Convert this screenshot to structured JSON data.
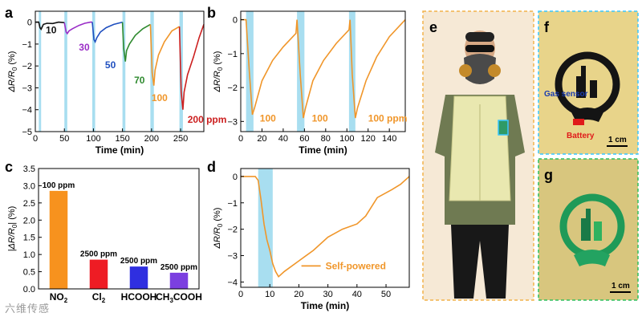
{
  "watermark": "六维传感",
  "colors": {
    "shade": "#a8def0",
    "orange": "#f0962a",
    "black": "#111111",
    "purple": "#9a2dc7",
    "blue": "#1f4fbf",
    "green": "#2f8a2f",
    "red": "#cc1f1f",
    "bar_no2": "#f7921e",
    "bar_cl2": "#ee1c24",
    "bar_hcooh": "#2f2fe0",
    "bar_ch3cooh": "#7b3fe0"
  },
  "panel_labels": {
    "a": "a",
    "b": "b",
    "c": "c",
    "d": "d",
    "e": "e",
    "f": "f",
    "g": "g"
  },
  "photos": {
    "f_gas_sensor": "Gas sensor",
    "f_battery": "Battery",
    "f_scale": "1 cm",
    "g_scale": "1 cm"
  },
  "chart_data": [
    {
      "id": "a",
      "type": "line",
      "xlabel": "Time (min)",
      "ylabel": "ΔR/R0 (%)",
      "xlim": [
        0,
        290
      ],
      "ylim": [
        -5,
        0.5
      ],
      "xticks": [
        0,
        50,
        100,
        150,
        200,
        250
      ],
      "yticks": [
        0,
        -1,
        -2,
        -3,
        -4,
        -5
      ],
      "shaded_ranges": [
        [
          6,
          10
        ],
        [
          50,
          55
        ],
        [
          98,
          103
        ],
        [
          150,
          155
        ],
        [
          198,
          204
        ],
        [
          248,
          254
        ]
      ],
      "annotations": [
        {
          "text": "10",
          "x": 18,
          "y": -0.5,
          "color": "black"
        },
        {
          "text": "30",
          "x": 75,
          "y": -1.3,
          "color": "purple"
        },
        {
          "text": "50",
          "x": 120,
          "y": -2.1,
          "color": "blue"
        },
        {
          "text": "70",
          "x": 170,
          "y": -2.8,
          "color": "green"
        },
        {
          "text": "100",
          "x": 200,
          "y": -3.6,
          "color": "orange"
        },
        {
          "text": "200 ppm",
          "x": 262,
          "y": -4.6,
          "color": "red"
        }
      ],
      "series": [
        {
          "name": "10 ppm",
          "color": "black",
          "points": [
            [
              0,
              0
            ],
            [
              6,
              0
            ],
            [
              8,
              -0.25
            ],
            [
              10,
              -0.32
            ],
            [
              14,
              -0.1
            ],
            [
              20,
              -0.05
            ],
            [
              30,
              -0.06
            ],
            [
              40,
              0
            ],
            [
              50,
              -0.02
            ]
          ]
        },
        {
          "name": "30 ppm",
          "color": "purple",
          "points": [
            [
              50,
              -0.02
            ],
            [
              53,
              -0.45
            ],
            [
              55,
              -0.52
            ],
            [
              58,
              -0.4
            ],
            [
              64,
              -0.3
            ],
            [
              75,
              -0.15
            ],
            [
              85,
              -0.05
            ],
            [
              95,
              0
            ],
            [
              98,
              0
            ]
          ]
        },
        {
          "name": "50 ppm",
          "color": "blue",
          "points": [
            [
              98,
              0
            ],
            [
              101,
              -0.8
            ],
            [
              103,
              -0.9
            ],
            [
              106,
              -0.7
            ],
            [
              112,
              -0.45
            ],
            [
              122,
              -0.25
            ],
            [
              135,
              -0.1
            ],
            [
              150,
              0
            ]
          ]
        },
        {
          "name": "70 ppm",
          "color": "green",
          "points": [
            [
              150,
              0
            ],
            [
              152,
              -1.2
            ],
            [
              155,
              -1.8
            ],
            [
              157,
              -1.3
            ],
            [
              162,
              -1.0
            ],
            [
              172,
              -0.6
            ],
            [
              185,
              -0.3
            ],
            [
              198,
              -0.1
            ]
          ]
        },
        {
          "name": "100 ppm",
          "color": "orange",
          "points": [
            [
              198,
              -0.1
            ],
            [
              201,
              -2.3
            ],
            [
              204,
              -2.9
            ],
            [
              206,
              -2.2
            ],
            [
              212,
              -1.5
            ],
            [
              222,
              -0.9
            ],
            [
              235,
              -0.4
            ],
            [
              248,
              -0.2
            ]
          ]
        },
        {
          "name": "200 ppm",
          "color": "red",
          "points": [
            [
              248,
              -0.2
            ],
            [
              251,
              -3.2
            ],
            [
              254,
              -4.0
            ],
            [
              256,
              -3.2
            ],
            [
              262,
              -2.4
            ],
            [
              272,
              -1.6
            ],
            [
              282,
              -0.7
            ],
            [
              290,
              -0.1
            ]
          ]
        }
      ]
    },
    {
      "id": "b",
      "type": "line",
      "xlabel": "Time (min)",
      "ylabel": "ΔR/R0 (%)",
      "xlim": [
        0,
        155
      ],
      "ylim": [
        -3.3,
        0.25
      ],
      "xticks": [
        0,
        20,
        40,
        60,
        80,
        100,
        120,
        140
      ],
      "yticks": [
        0,
        -1,
        -2,
        -3
      ],
      "shaded_ranges": [
        [
          5,
          12
        ],
        [
          53,
          60
        ],
        [
          102,
          108
        ]
      ],
      "annotations": [
        {
          "text": "100",
          "x": 18,
          "y": -3.0,
          "color": "orange"
        },
        {
          "text": "100",
          "x": 67,
          "y": -3.0,
          "color": "orange"
        },
        {
          "text": "100 ppm",
          "x": 120,
          "y": -3.0,
          "color": "orange"
        }
      ],
      "series": [
        {
          "name": "100 ppm cycles",
          "color": "orange",
          "points": [
            [
              0,
              0
            ],
            [
              5,
              0
            ],
            [
              8,
              -1.5
            ],
            [
              11,
              -2.8
            ],
            [
              13,
              -2.6
            ],
            [
              20,
              -1.8
            ],
            [
              30,
              -1.2
            ],
            [
              40,
              -0.8
            ],
            [
              52,
              -0.4
            ],
            [
              53,
              0
            ],
            [
              56,
              -1.6
            ],
            [
              59,
              -2.9
            ],
            [
              61,
              -2.6
            ],
            [
              68,
              -1.8
            ],
            [
              78,
              -1.2
            ],
            [
              90,
              -0.7
            ],
            [
              102,
              -0.3
            ],
            [
              103,
              0
            ],
            [
              105,
              -1.6
            ],
            [
              108,
              -2.9
            ],
            [
              110,
              -2.6
            ],
            [
              118,
              -1.8
            ],
            [
              128,
              -1.1
            ],
            [
              140,
              -0.5
            ],
            [
              155,
              0
            ]
          ]
        }
      ]
    },
    {
      "id": "c",
      "type": "bar",
      "ylabel": "|ΔR/R0| (%)",
      "ylim": [
        0,
        3.5
      ],
      "yticks": [
        0,
        0.5,
        1.0,
        1.5,
        2.0,
        2.5,
        3.0,
        3.5
      ],
      "categories": [
        "NO2",
        "Cl2",
        "HCOOH",
        "CH3COOH"
      ],
      "values": [
        2.85,
        0.85,
        0.65,
        0.47
      ],
      "bar_labels": [
        "100 ppm",
        "2500 ppm",
        "2500 ppm",
        "2500 ppm"
      ]
    },
    {
      "id": "d",
      "type": "line",
      "xlabel": "Time (min)",
      "ylabel": "ΔR/R0 (%)",
      "xlim": [
        0,
        58
      ],
      "ylim": [
        -4.2,
        0.3
      ],
      "xticks": [
        0,
        10,
        20,
        30,
        40,
        50
      ],
      "yticks": [
        0,
        -1,
        -2,
        -3,
        -4
      ],
      "shaded_ranges": [
        [
          6,
          11
        ]
      ],
      "legend": "Self-powered",
      "series": [
        {
          "name": "Self-powered",
          "color": "orange",
          "points": [
            [
              0,
              0
            ],
            [
              5,
              0
            ],
            [
              6,
              -0.15
            ],
            [
              7,
              -0.9
            ],
            [
              8,
              -1.8
            ],
            [
              9,
              -2.4
            ],
            [
              10,
              -2.8
            ],
            [
              11,
              -3.3
            ],
            [
              12,
              -3.6
            ],
            [
              13,
              -3.8
            ],
            [
              15,
              -3.6
            ],
            [
              20,
              -3.2
            ],
            [
              25,
              -2.8
            ],
            [
              30,
              -2.3
            ],
            [
              35,
              -2.0
            ],
            [
              40,
              -1.8
            ],
            [
              43,
              -1.5
            ],
            [
              47,
              -0.8
            ],
            [
              52,
              -0.5
            ],
            [
              55,
              -0.3
            ],
            [
              58,
              0
            ]
          ]
        }
      ]
    }
  ]
}
